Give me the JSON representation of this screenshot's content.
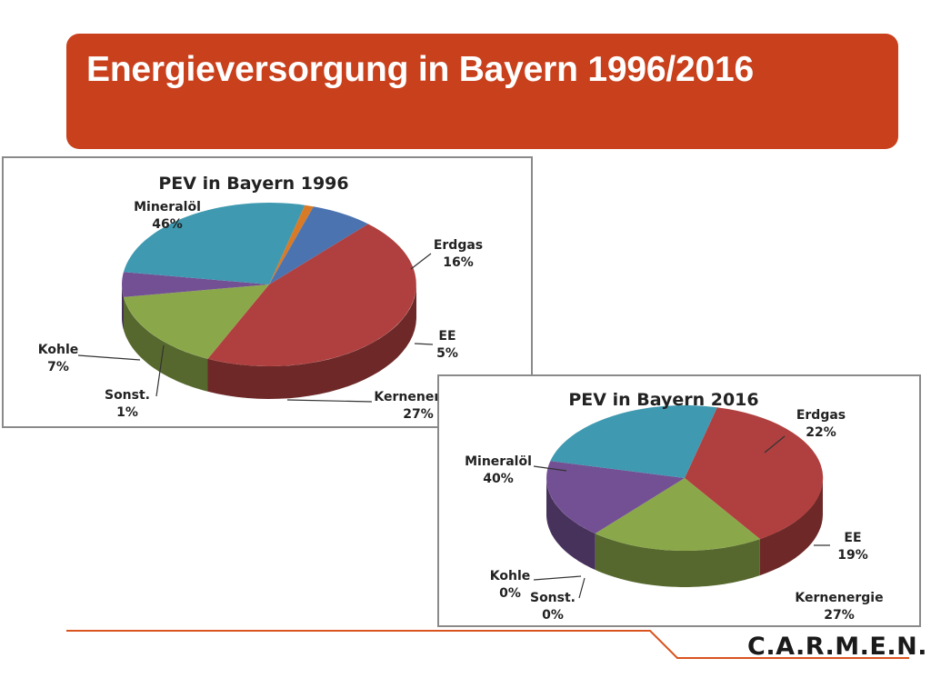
{
  "slide": {
    "title": "Energieversorgung in Bayern 1996/2016",
    "logo": "C.A.R.M.E.N."
  },
  "colors": {
    "title_bar": "#c8401c",
    "footer_line": "#d9531e",
    "mineraloel": "#b0403f",
    "erdgas": "#8aa84a",
    "ee": "#735094",
    "kernenergie": "#3f99b0",
    "kohle": "#4a73b0",
    "sonst": "#d97a26"
  },
  "chart_data": [
    {
      "type": "pie",
      "title": "PEV in Bayern 1996",
      "categories": [
        "Mineralöl",
        "Erdgas",
        "EE",
        "Kernenergie",
        "Sonst.",
        "Kohle"
      ],
      "values": [
        46,
        16,
        5,
        27,
        1,
        7
      ],
      "labels": [
        {
          "name": "Mineralöl",
          "pct": "46%"
        },
        {
          "name": "Erdgas",
          "pct": "16%"
        },
        {
          "name": "EE",
          "pct": "5%"
        },
        {
          "name": "Kernenergie",
          "pct": "27%"
        },
        {
          "name": "Sonst.",
          "pct": "1%"
        },
        {
          "name": "Kohle",
          "pct": "7%"
        }
      ]
    },
    {
      "type": "pie",
      "title": "PEV in Bayern 2016",
      "categories": [
        "Mineralöl",
        "Erdgas",
        "EE",
        "Kernenergie",
        "Sonst.",
        "Kohle"
      ],
      "values": [
        40,
        22,
        19,
        27,
        0,
        0
      ],
      "labels": [
        {
          "name": "Mineralöl",
          "pct": "40%"
        },
        {
          "name": "Erdgas",
          "pct": "22%"
        },
        {
          "name": "EE",
          "pct": "19%"
        },
        {
          "name": "Kernenergie",
          "pct": "27%"
        },
        {
          "name": "Sonst.",
          "pct": "0%"
        },
        {
          "name": "Kohle",
          "pct": "0%"
        }
      ]
    }
  ]
}
